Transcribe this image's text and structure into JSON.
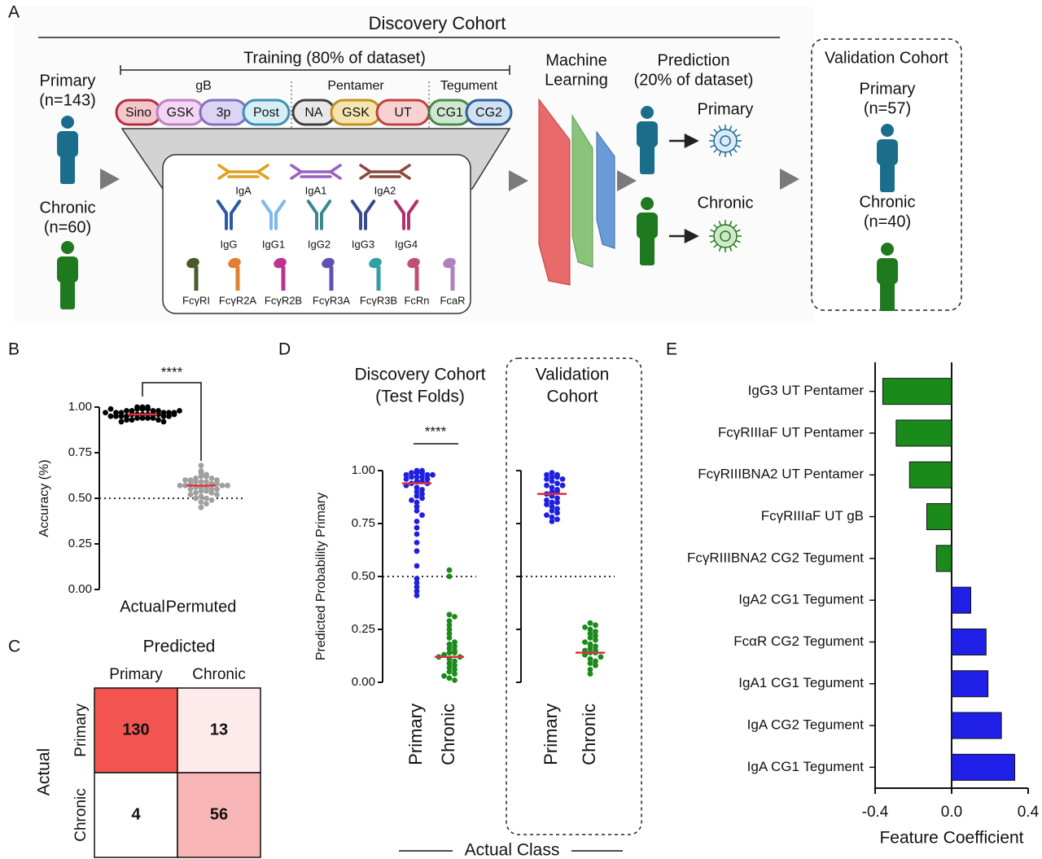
{
  "panel_a": {
    "label": "A",
    "title": "Discovery Cohort",
    "training": "Training (80% of dataset)",
    "discovery_groups": [
      {
        "name": "Primary",
        "n": "(n=143)"
      },
      {
        "name": "Chronic",
        "n": "(n=60)"
      }
    ],
    "antigen_groups": [
      {
        "name": "gB",
        "antigens": [
          "Sino",
          "GSK",
          "3p",
          "Post"
        ]
      },
      {
        "name": "Pentamer",
        "antigens": [
          "NA",
          "GSK",
          "UT"
        ]
      },
      {
        "name": "Tegument",
        "antigens": [
          "CG1",
          "CG2"
        ]
      }
    ],
    "antibodies": [
      [
        "IgA",
        "IgA1",
        "IgA2"
      ],
      [
        "IgG",
        "IgG1",
        "IgG2",
        "IgG3",
        "IgG4"
      ],
      [
        "FcγRI",
        "FcγR2A",
        "FcγR2B",
        "FcγR3A",
        "FcγR3B",
        "FcRn",
        "FcaR"
      ]
    ],
    "ml": [
      "Machine",
      "Learning"
    ],
    "prediction": [
      "Prediction",
      "(20% of dataset)"
    ],
    "predicted_classes": [
      "Primary",
      "Chronic"
    ],
    "validation": {
      "title": "Validation Cohort",
      "groups": [
        {
          "name": "Primary",
          "n": "(n=57)"
        },
        {
          "name": "Chronic",
          "n": "(n=40)"
        }
      ]
    }
  },
  "panel_c": {
    "label": "C",
    "title": "Predicted",
    "ylabel": "Actual",
    "columns": [
      "Primary",
      "Chronic"
    ],
    "column_colors": [
      "#1f1fe0",
      "#1a8a1a"
    ],
    "rows": [
      "Primary",
      "Chronic"
    ],
    "cells": [
      [
        130,
        13
      ],
      [
        4,
        56
      ]
    ],
    "cell_colors": [
      [
        "#f25450",
        "#fdeaea"
      ],
      [
        "#ffffff",
        "#f9b6b6"
      ]
    ]
  },
  "panel_d": {
    "label": "D",
    "xlabel": "Actual Class"
  },
  "chart_data": [
    {
      "type": "strip",
      "label": "B",
      "ylabel": "Accuracy (%)",
      "categories": [
        "Actual",
        "Permuted"
      ],
      "colors": [
        "#000000",
        "#a0a0a0"
      ],
      "values": [
        [
          1.0,
          1.0,
          0.99,
          0.99,
          0.99,
          0.98,
          0.98,
          0.98,
          0.98,
          0.97,
          0.97,
          0.97,
          0.97,
          0.97,
          0.96,
          0.96,
          0.96,
          0.96,
          0.96,
          0.96,
          0.95,
          0.95,
          0.95,
          0.95,
          0.95,
          0.94,
          0.94,
          0.94,
          0.94,
          0.93,
          0.93,
          0.93,
          0.92,
          0.92,
          0.99,
          0.98,
          0.97,
          0.96,
          0.95,
          1.0
        ],
        [
          0.68,
          0.65,
          0.64,
          0.63,
          0.62,
          0.62,
          0.61,
          0.61,
          0.6,
          0.6,
          0.6,
          0.59,
          0.59,
          0.59,
          0.58,
          0.58,
          0.58,
          0.57,
          0.57,
          0.57,
          0.57,
          0.56,
          0.56,
          0.56,
          0.55,
          0.55,
          0.55,
          0.54,
          0.54,
          0.53,
          0.53,
          0.52,
          0.52,
          0.51,
          0.5,
          0.5,
          0.49,
          0.48,
          0.47,
          0.45
        ]
      ],
      "means": [
        0.96,
        0.57
      ],
      "mean_color": "#e0303a",
      "threshold": 0.5,
      "significance": "****",
      "ylim": [
        0,
        1
      ],
      "yticks": [
        {
          "value": 0,
          "label": "0.00"
        },
        0.25,
        {
          "value": 0.5,
          "label": "0.50"
        },
        0.75,
        {
          "value": 1,
          "label": "1.00"
        }
      ]
    },
    {
      "type": "strip",
      "title": [
        "Discovery Cohort",
        "(Test Folds)"
      ],
      "title_color": "#000000",
      "ylabel": "Predicted Probability Primary",
      "categories": [
        "Primary",
        "Chronic"
      ],
      "colors": [
        "#1f1fe0",
        "#1a8a1a"
      ],
      "values": [
        [
          1.0,
          1.0,
          0.99,
          0.99,
          0.99,
          0.98,
          0.98,
          0.98,
          0.97,
          0.97,
          0.97,
          0.96,
          0.96,
          0.95,
          0.95,
          0.94,
          0.94,
          0.93,
          0.92,
          0.91,
          0.9,
          0.89,
          0.88,
          0.87,
          0.86,
          0.85,
          0.83,
          0.81,
          0.79,
          0.76,
          0.73,
          0.7,
          0.66,
          0.62,
          0.55,
          0.49,
          0.47,
          0.45,
          0.43,
          0.41
        ],
        [
          0.53,
          0.5,
          0.32,
          0.31,
          0.29,
          0.27,
          0.25,
          0.23,
          0.21,
          0.19,
          0.18,
          0.17,
          0.16,
          0.15,
          0.14,
          0.14,
          0.13,
          0.12,
          0.12,
          0.11,
          0.1,
          0.09,
          0.08,
          0.07,
          0.06,
          0.05,
          0.04,
          0.03,
          0.02,
          0.01
        ]
      ],
      "means": [
        0.94,
        0.12
      ],
      "mean_color": "#e0303a",
      "threshold": 0.5,
      "significance": "****",
      "ylim": [
        0,
        1
      ],
      "yticks": [
        {
          "value": 0,
          "label": "0.00"
        },
        0.25,
        {
          "value": 0.5,
          "label": "0.50"
        },
        0.75,
        {
          "value": 1,
          "label": "1.00"
        }
      ]
    },
    {
      "type": "strip",
      "title": [
        "Validation",
        "Cohort"
      ],
      "title_color": "#e01010",
      "categories": [
        "Primary",
        "Chronic"
      ],
      "colors": [
        "#1f1fe0",
        "#1a8a1a"
      ],
      "values": [
        [
          0.99,
          0.98,
          0.98,
          0.97,
          0.97,
          0.96,
          0.96,
          0.95,
          0.94,
          0.93,
          0.93,
          0.92,
          0.91,
          0.9,
          0.9,
          0.89,
          0.88,
          0.87,
          0.86,
          0.85,
          0.85,
          0.84,
          0.83,
          0.82,
          0.81,
          0.8,
          0.79,
          0.78,
          0.77,
          0.76
        ],
        [
          0.28,
          0.27,
          0.26,
          0.25,
          0.24,
          0.23,
          0.22,
          0.21,
          0.2,
          0.19,
          0.18,
          0.17,
          0.16,
          0.15,
          0.15,
          0.14,
          0.14,
          0.13,
          0.12,
          0.11,
          0.1,
          0.09,
          0.08,
          0.06,
          0.04
        ]
      ],
      "means": [
        0.89,
        0.14
      ],
      "mean_color": "#e0303a",
      "threshold": 0.5,
      "ylim": [
        0,
        1
      ],
      "yticks": [
        0,
        0.25,
        0.5,
        0.75,
        1
      ],
      "tick_labels": false
    },
    {
      "type": "barh",
      "label": "E",
      "xlabel": "Feature Coefficient",
      "categories": [
        "IgG3 UT Pentamer",
        "FcγRIIIaF UT Pentamer",
        "FcγRIIIBNA2 UT Pentamer",
        "FcγRIIIaF UT gB",
        "FcγRIIIBNA2 CG2 Tegument",
        "IgA2 CG1 Tegument",
        "FcαR CG2 Tegument",
        "IgA1 CG1 Tegument",
        "IgA CG2 Tegument",
        "IgA CG1 Tegument"
      ],
      "values": [
        -0.36,
        -0.29,
        -0.22,
        -0.13,
        -0.08,
        0.1,
        0.18,
        0.19,
        0.26,
        0.33
      ],
      "colors": [
        "#1a8a1a",
        "#1a8a1a",
        "#1a8a1a",
        "#1a8a1a",
        "#1a8a1a",
        "#1f1fe8",
        "#1f1fe8",
        "#1f1fe8",
        "#1f1fe8",
        "#1f1fe8"
      ],
      "xlim": [
        -0.4,
        0.4
      ],
      "xticks": [
        -0.4,
        {
          "value": 0,
          "label": "0.0"
        },
        0.4
      ]
    }
  ]
}
